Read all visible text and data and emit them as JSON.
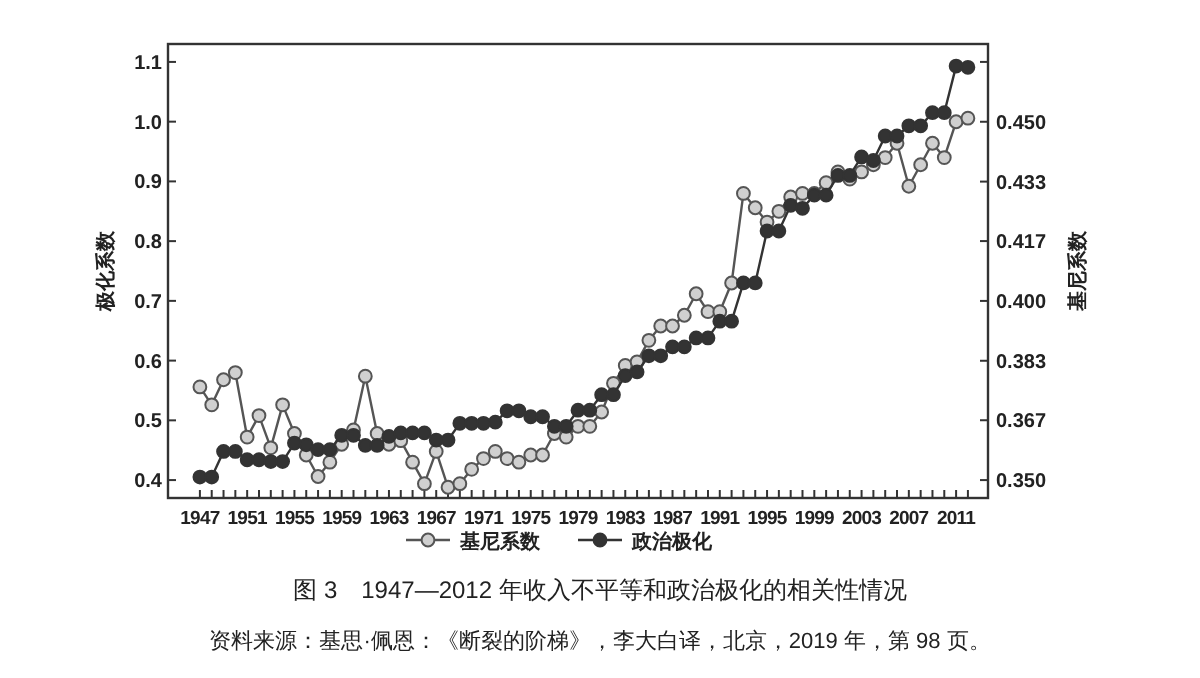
{
  "chart_data": {
    "type": "line",
    "title": "图 3　1947—2012 年收入不平等和政治极化的相关性情况",
    "annotations": [
      "资料来源：基思·佩恩：《断裂的阶梯》，李大白译，北京，2019 年，第 98 页。"
    ],
    "ylabel": "极化系数",
    "y2label": "基尼系数",
    "x": [
      1947,
      1948,
      1949,
      1950,
      1951,
      1952,
      1953,
      1954,
      1955,
      1956,
      1957,
      1958,
      1959,
      1960,
      1961,
      1962,
      1963,
      1964,
      1965,
      1966,
      1967,
      1968,
      1969,
      1970,
      1971,
      1972,
      1973,
      1974,
      1975,
      1976,
      1977,
      1978,
      1979,
      1980,
      1981,
      1982,
      1983,
      1984,
      1985,
      1986,
      1987,
      1988,
      1989,
      1990,
      1991,
      1992,
      1993,
      1994,
      1995,
      1996,
      1997,
      1998,
      1999,
      2000,
      2001,
      2002,
      2003,
      2004,
      2005,
      2006,
      2007,
      2008,
      2009,
      2010,
      2011,
      2012
    ],
    "series": [
      {
        "name": "基尼系数",
        "color": "#555555",
        "axis": "y2",
        "values": [
          0.376,
          0.371,
          0.378,
          0.38,
          0.362,
          0.368,
          0.359,
          0.371,
          0.363,
          0.357,
          0.351,
          0.355,
          0.36,
          0.364,
          0.379,
          0.363,
          0.36,
          0.361,
          0.355,
          0.349,
          0.358,
          0.348,
          0.349,
          0.353,
          0.356,
          0.358,
          0.356,
          0.355,
          0.357,
          0.357,
          0.363,
          0.362,
          0.365,
          0.365,
          0.369,
          0.377,
          0.382,
          0.383,
          0.389,
          0.393,
          0.393,
          0.396,
          0.402,
          0.397,
          0.397,
          0.405,
          0.43,
          0.426,
          0.422,
          0.425,
          0.429,
          0.43,
          0.43,
          0.433,
          0.436,
          0.434,
          0.436,
          0.438,
          0.44,
          0.444,
          0.432,
          0.438,
          0.444,
          0.44,
          0.45,
          0.451
        ]
      },
      {
        "name": "政治极化",
        "color": "#333333",
        "values": [
          0.405,
          0.405,
          0.448,
          0.448,
          0.434,
          0.434,
          0.431,
          0.431,
          0.462,
          0.459,
          0.451,
          0.451,
          0.475,
          0.475,
          0.458,
          0.458,
          0.473,
          0.479,
          0.479,
          0.479,
          0.467,
          0.467,
          0.495,
          0.495,
          0.495,
          0.497,
          0.516,
          0.516,
          0.506,
          0.506,
          0.49,
          0.49,
          0.517,
          0.517,
          0.543,
          0.543,
          0.575,
          0.581,
          0.608,
          0.608,
          0.623,
          0.623,
          0.638,
          0.638,
          0.666,
          0.666,
          0.73,
          0.73,
          0.817,
          0.817,
          0.86,
          0.855,
          0.877,
          0.877,
          0.91,
          0.91,
          0.941,
          0.935,
          0.976,
          0.976,
          0.993,
          0.993,
          1.015,
          1.015,
          1.093,
          1.091
        ]
      }
    ],
    "xlim": [
      1944.3,
      2013.7
    ],
    "xticks": [
      1947,
      {
        "value": 1948,
        "label": null
      },
      {
        "value": 1949,
        "label": null
      },
      {
        "value": 1950,
        "label": null
      },
      1951,
      {
        "value": 1952,
        "label": null
      },
      {
        "value": 1953,
        "label": null
      },
      {
        "value": 1954,
        "label": null
      },
      1955,
      {
        "value": 1956,
        "label": null
      },
      {
        "value": 1957,
        "label": null
      },
      {
        "value": 1958,
        "label": null
      },
      1959,
      {
        "value": 1960,
        "label": null
      },
      {
        "value": 1961,
        "label": null
      },
      {
        "value": 1962,
        "label": null
      },
      1963,
      {
        "value": 1964,
        "label": null
      },
      {
        "value": 1965,
        "label": null
      },
      {
        "value": 1966,
        "label": null
      },
      1967,
      {
        "value": 1968,
        "label": null
      },
      {
        "value": 1969,
        "label": null
      },
      {
        "value": 1970,
        "label": null
      },
      1971,
      {
        "value": 1972,
        "label": null
      },
      {
        "value": 1973,
        "label": null
      },
      {
        "value": 1974,
        "label": null
      },
      1975,
      {
        "value": 1976,
        "label": null
      },
      {
        "value": 1977,
        "label": null
      },
      {
        "value": 1978,
        "label": null
      },
      1979,
      {
        "value": 1980,
        "label": null
      },
      {
        "value": 1981,
        "label": null
      },
      {
        "value": 1982,
        "label": null
      },
      1983,
      {
        "value": 1984,
        "label": null
      },
      {
        "value": 1985,
        "label": null
      },
      {
        "value": 1986,
        "label": null
      },
      1987,
      {
        "value": 1988,
        "label": null
      },
      {
        "value": 1989,
        "label": null
      },
      {
        "value": 1990,
        "label": null
      },
      1991,
      {
        "value": 1992,
        "label": null
      },
      {
        "value": 1993,
        "label": null
      },
      {
        "value": 1994,
        "label": null
      },
      1995,
      {
        "value": 1996,
        "label": null
      },
      {
        "value": 1997,
        "label": null
      },
      {
        "value": 1998,
        "label": null
      },
      1999,
      {
        "value": 2000,
        "label": null
      },
      {
        "value": 2001,
        "label": null
      },
      {
        "value": 2002,
        "label": null
      },
      2003,
      {
        "value": 2004,
        "label": null
      },
      {
        "value": 2005,
        "label": null
      },
      {
        "value": 2006,
        "label": null
      },
      2007,
      {
        "value": 2008,
        "label": null
      },
      {
        "value": 2009,
        "label": null
      },
      {
        "value": 2010,
        "label": null
      },
      2011,
      {
        "value": 2012,
        "label": null
      }
    ],
    "ylim": [
      0.37,
      1.13
    ],
    "yticks": [
      0.4,
      0.5,
      0.6,
      0.7,
      0.8,
      0.9,
      {
        "value": 1.0,
        "label": "1.0"
      },
      1.1
    ],
    "y2lim": [
      0.345,
      0.4717
    ],
    "y2ticks": [
      {
        "value": 0.35,
        "label": "0.350"
      },
      {
        "value": 0.3667,
        "label": "0.367"
      },
      {
        "value": 0.3833,
        "label": "0.383"
      },
      {
        "value": 0.4,
        "label": "0.400"
      },
      {
        "value": 0.4167,
        "label": "0.417"
      },
      {
        "value": 0.4333,
        "label": "0.433"
      },
      {
        "value": 0.45,
        "label": "0.450"
      },
      {
        "value": 0.4667,
        "label": null
      }
    ],
    "legend": "bottom",
    "marker": "circle"
  }
}
